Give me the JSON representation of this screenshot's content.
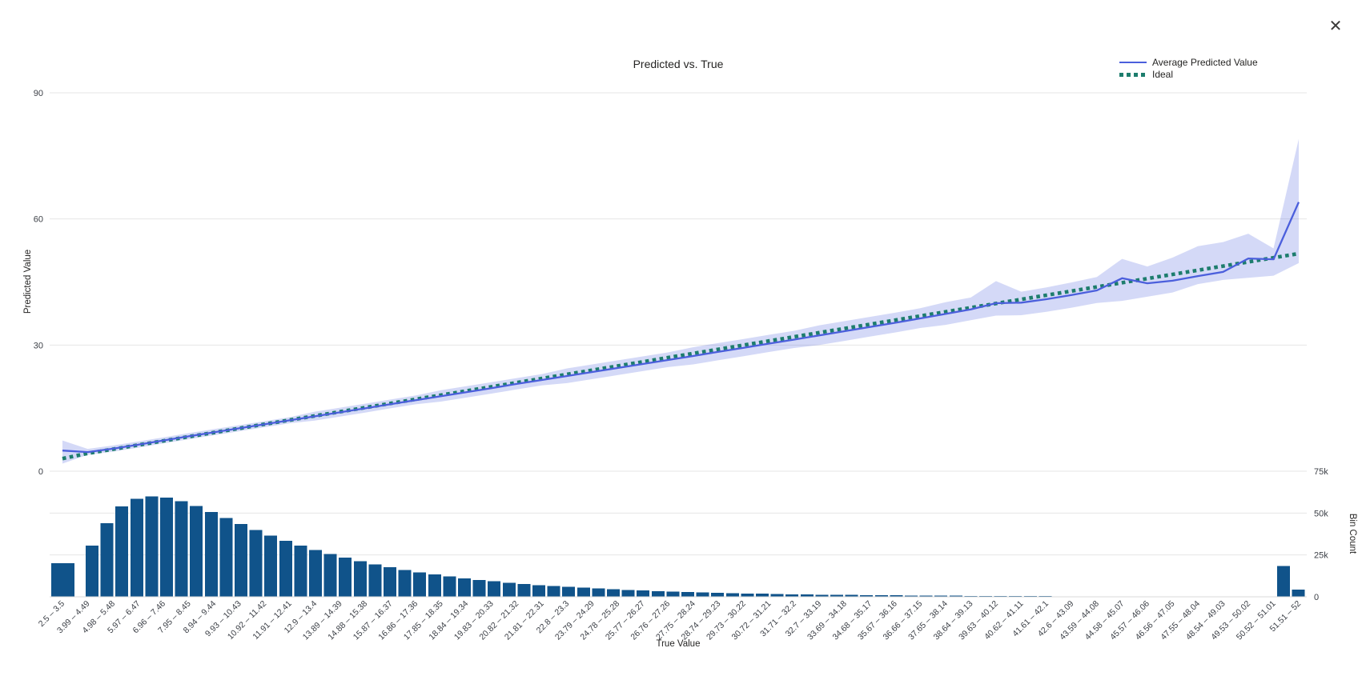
{
  "window": {
    "close_icon": "✕"
  },
  "chart_data": {
    "type": "line",
    "title": "Predicted vs. True",
    "xlabel": "True Value",
    "ylabel_left": "Predicted Value",
    "ylabel_right": "Bin Count",
    "legend": [
      {
        "label": "Average Predicted Value",
        "type": "line",
        "color": "#4b5fdc"
      },
      {
        "label": "Ideal",
        "type": "dotted",
        "color": "#1d7d6d"
      }
    ],
    "legend_position": "top-right",
    "grid": "horizontal",
    "y_left": {
      "ticks": [
        0,
        30,
        60,
        90
      ],
      "tick_labels": [
        "0",
        "30",
        "60",
        "90"
      ],
      "range": [
        0,
        90
      ]
    },
    "y_right": {
      "ticks": [
        0,
        25000,
        50000,
        75000
      ],
      "tick_labels": [
        "0",
        "25k",
        "50k",
        "75k"
      ],
      "range": [
        0,
        75000
      ]
    },
    "categories": [
      "2.5 – 3.5",
      "3.99 – 4.49",
      "4.98 – 5.48",
      "5.97 – 6.47",
      "6.96 – 7.46",
      "7.95 – 8.45",
      "8.94 – 9.44",
      "9.93 – 10.43",
      "10.92 – 11.42",
      "11.91 – 12.41",
      "12.9 – 13.4",
      "13.89 – 14.39",
      "14.88 – 15.38",
      "15.87 – 16.37",
      "16.86 – 17.36",
      "17.85 – 18.35",
      "18.84 – 19.34",
      "19.83 – 20.33",
      "20.82 – 21.32",
      "21.81 – 22.31",
      "22.8 – 23.3",
      "23.79 – 24.29",
      "24.78 – 25.28",
      "25.77 – 26.27",
      "26.76 – 27.26",
      "27.75 – 28.24",
      "28.74 – 29.23",
      "29.73 – 30.22",
      "30.72 – 31.21",
      "31.71 – 32.2",
      "32.7 – 33.19",
      "33.69 – 34.18",
      "34.68 – 35.17",
      "35.67 – 36.16",
      "36.66 – 37.15",
      "37.65 – 38.14",
      "38.64 – 39.13",
      "39.63 – 40.12",
      "40.62 – 41.11",
      "41.61 – 42.1",
      "42.6 – 43.09",
      "43.59 – 44.08",
      "44.58 – 45.07",
      "45.57 – 46.06",
      "46.56 – 47.05",
      "47.55 – 48.04",
      "48.54 – 49.03",
      "49.53 – 50.02",
      "50.52 – 51.01",
      "51.51 – 52"
    ],
    "series": {
      "ideal": [
        3.0,
        4.24,
        5.23,
        6.22,
        7.21,
        8.2,
        9.19,
        10.18,
        11.17,
        12.16,
        13.15,
        14.14,
        15.13,
        16.12,
        17.11,
        18.1,
        19.09,
        20.08,
        21.07,
        22.06,
        23.05,
        24.04,
        25.03,
        26.02,
        27.01,
        28.0,
        28.99,
        29.98,
        30.97,
        31.96,
        32.95,
        33.94,
        34.93,
        35.92,
        36.91,
        37.9,
        38.89,
        39.88,
        40.87,
        41.86,
        42.85,
        43.84,
        44.83,
        45.82,
        46.81,
        47.8,
        48.79,
        49.78,
        50.77,
        51.76
      ],
      "predicted": [
        4.9,
        4.55,
        5.35,
        6.3,
        7.3,
        8.3,
        9.25,
        10.2,
        11.15,
        12.1,
        13.05,
        14.0,
        14.95,
        15.95,
        16.9,
        17.85,
        18.8,
        19.75,
        20.75,
        21.7,
        22.65,
        23.6,
        24.55,
        25.5,
        26.45,
        27.4,
        28.4,
        29.35,
        30.35,
        31.3,
        32.3,
        33.3,
        34.3,
        35.3,
        36.35,
        37.4,
        38.5,
        39.95,
        40.1,
        40.9,
        41.9,
        43.0,
        45.9,
        44.7,
        45.3,
        46.4,
        47.4,
        50.6,
        50.4,
        64.0
      ],
      "band_upper": [
        7.3,
        5.3,
        6.1,
        7.05,
        8.05,
        9.05,
        10.0,
        10.95,
        11.9,
        12.85,
        14.15,
        15.1,
        16.05,
        17.05,
        18.0,
        19.25,
        20.2,
        21.15,
        22.15,
        23.1,
        24.45,
        25.4,
        26.35,
        27.3,
        28.25,
        29.5,
        30.5,
        31.45,
        32.45,
        33.4,
        34.7,
        35.7,
        36.7,
        37.7,
        38.75,
        40.2,
        41.3,
        45.2,
        42.7,
        43.7,
        44.9,
        46.2,
        50.5,
        48.7,
        50.8,
        53.5,
        54.5,
        56.5,
        53.0,
        79.0
      ],
      "band_lower": [
        1.8,
        3.9,
        4.65,
        5.6,
        6.6,
        7.6,
        8.55,
        9.5,
        10.45,
        11.4,
        12.05,
        13.0,
        13.95,
        14.95,
        15.9,
        16.55,
        17.5,
        18.45,
        19.45,
        20.4,
        20.95,
        21.9,
        22.85,
        23.8,
        24.75,
        25.4,
        26.4,
        27.35,
        28.35,
        29.3,
        30.0,
        31.0,
        32.0,
        33.0,
        34.05,
        34.8,
        35.9,
        37.0,
        37.1,
        37.9,
        38.9,
        40.0,
        40.5,
        41.5,
        42.5,
        44.5,
        45.5,
        46.0,
        46.5,
        49.5
      ]
    },
    "histogram": {
      "first_bar": {
        "label": "2.5 – 3.5",
        "count": 20000
      },
      "run_counts": [
        30500,
        44000,
        54000,
        58500,
        60000,
        59200,
        57200,
        54200,
        50600,
        47000,
        43500,
        40000,
        36600,
        33500,
        30600,
        28000,
        25600,
        23300,
        21200,
        19300,
        17600,
        16000,
        14600,
        13300,
        12100,
        11000,
        10000,
        9200,
        8400,
        7700,
        7000,
        6400,
        5900,
        5400,
        4900,
        4500,
        4100,
        3800,
        3400,
        3100,
        2900,
        2600,
        2400,
        2200,
        2000,
        1800,
        1700,
        1500,
        1400,
        1300,
        1200,
        1100,
        1000,
        900,
        850,
        780,
        720,
        660,
        600,
        550,
        500,
        460,
        420,
        390,
        360,
        330,
        300,
        280,
        250,
        230,
        210,
        190,
        180,
        160,
        150,
        140,
        130,
        120,
        110,
        100,
        18500,
        4400
      ]
    },
    "colors": {
      "line": "#4b5fdc",
      "band": "#4b5fdc",
      "band_opacity": 0.24,
      "ideal": "#1d7d6d",
      "bar": "#10538a",
      "grid": "#e6e6e6",
      "axis_line": "#d8d8d8",
      "tick_text": "#3b3f46",
      "text": "#252423"
    }
  }
}
